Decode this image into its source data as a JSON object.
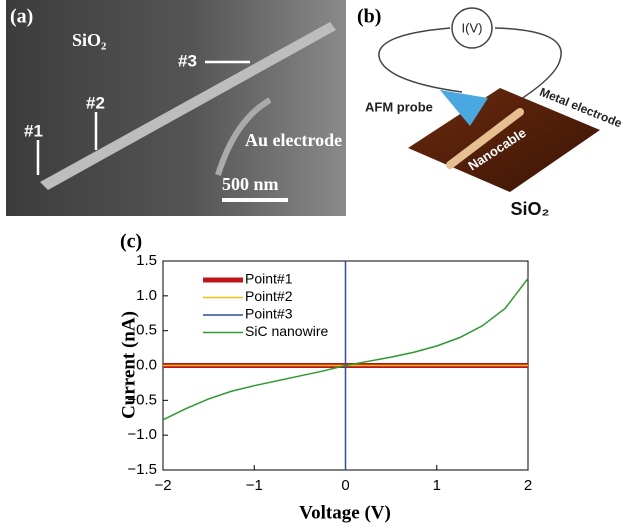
{
  "panels": {
    "a": {
      "label": "(a)",
      "material": "SiO₂",
      "points": [
        "#1",
        "#2",
        "#3"
      ],
      "electrode": "Au electrode",
      "scale_bar": "500 nm"
    },
    "b": {
      "label": "(b)",
      "meter": "I(V)",
      "probe": "AFM probe",
      "electrode": "Metal electrode",
      "cable": "Nanocable",
      "substrate": "SiO₂"
    }
  },
  "chart_data": {
    "type": "line",
    "panel_label": "(c)",
    "x_label": "Voltage (V)",
    "y_label": "Current (nA)",
    "xlim": [
      -2,
      2
    ],
    "xticks": [
      {
        "value": -2,
        "label": "−2"
      },
      {
        "value": -1,
        "label": "−1"
      },
      0,
      1,
      2
    ],
    "ylim": [
      -1.5,
      1.5
    ],
    "yticks": [
      {
        "value": -1.5,
        "label": "−1.5"
      },
      {
        "value": -1.0,
        "label": "−1.0"
      },
      {
        "value": -0.5,
        "label": "−0.5"
      },
      {
        "value": 0.0,
        "label": "0.0"
      },
      0.5,
      {
        "value": 1.0,
        "label": "1.0"
      },
      1.5
    ],
    "legend": "upper left",
    "series": [
      {
        "name": "Point#1",
        "color": "#c0151b",
        "width": 5,
        "x": [
          -2,
          2
        ],
        "values": [
          0,
          0
        ]
      },
      {
        "name": "Point#2",
        "color": "#e8c21a",
        "width": 1.5,
        "x": [
          -2,
          2
        ],
        "values": [
          0,
          0
        ]
      },
      {
        "name": "Point#3",
        "color": "#2a4fa0",
        "width": 1.5,
        "x": [
          0,
          0
        ],
        "values": [
          -1.5,
          1.5
        ]
      },
      {
        "name": "SiC nanowire",
        "color": "#2c9a2c",
        "width": 1.5,
        "x": [
          -2,
          -1.75,
          -1.5,
          -1.25,
          -1,
          -0.75,
          -0.5,
          -0.25,
          0,
          0.25,
          0.5,
          0.75,
          1,
          1.25,
          1.5,
          1.75,
          2
        ],
        "values": [
          -0.78,
          -0.62,
          -0.48,
          -0.37,
          -0.29,
          -0.22,
          -0.15,
          -0.08,
          0,
          0.06,
          0.12,
          0.19,
          0.28,
          0.4,
          0.57,
          0.82,
          1.25
        ]
      }
    ]
  }
}
